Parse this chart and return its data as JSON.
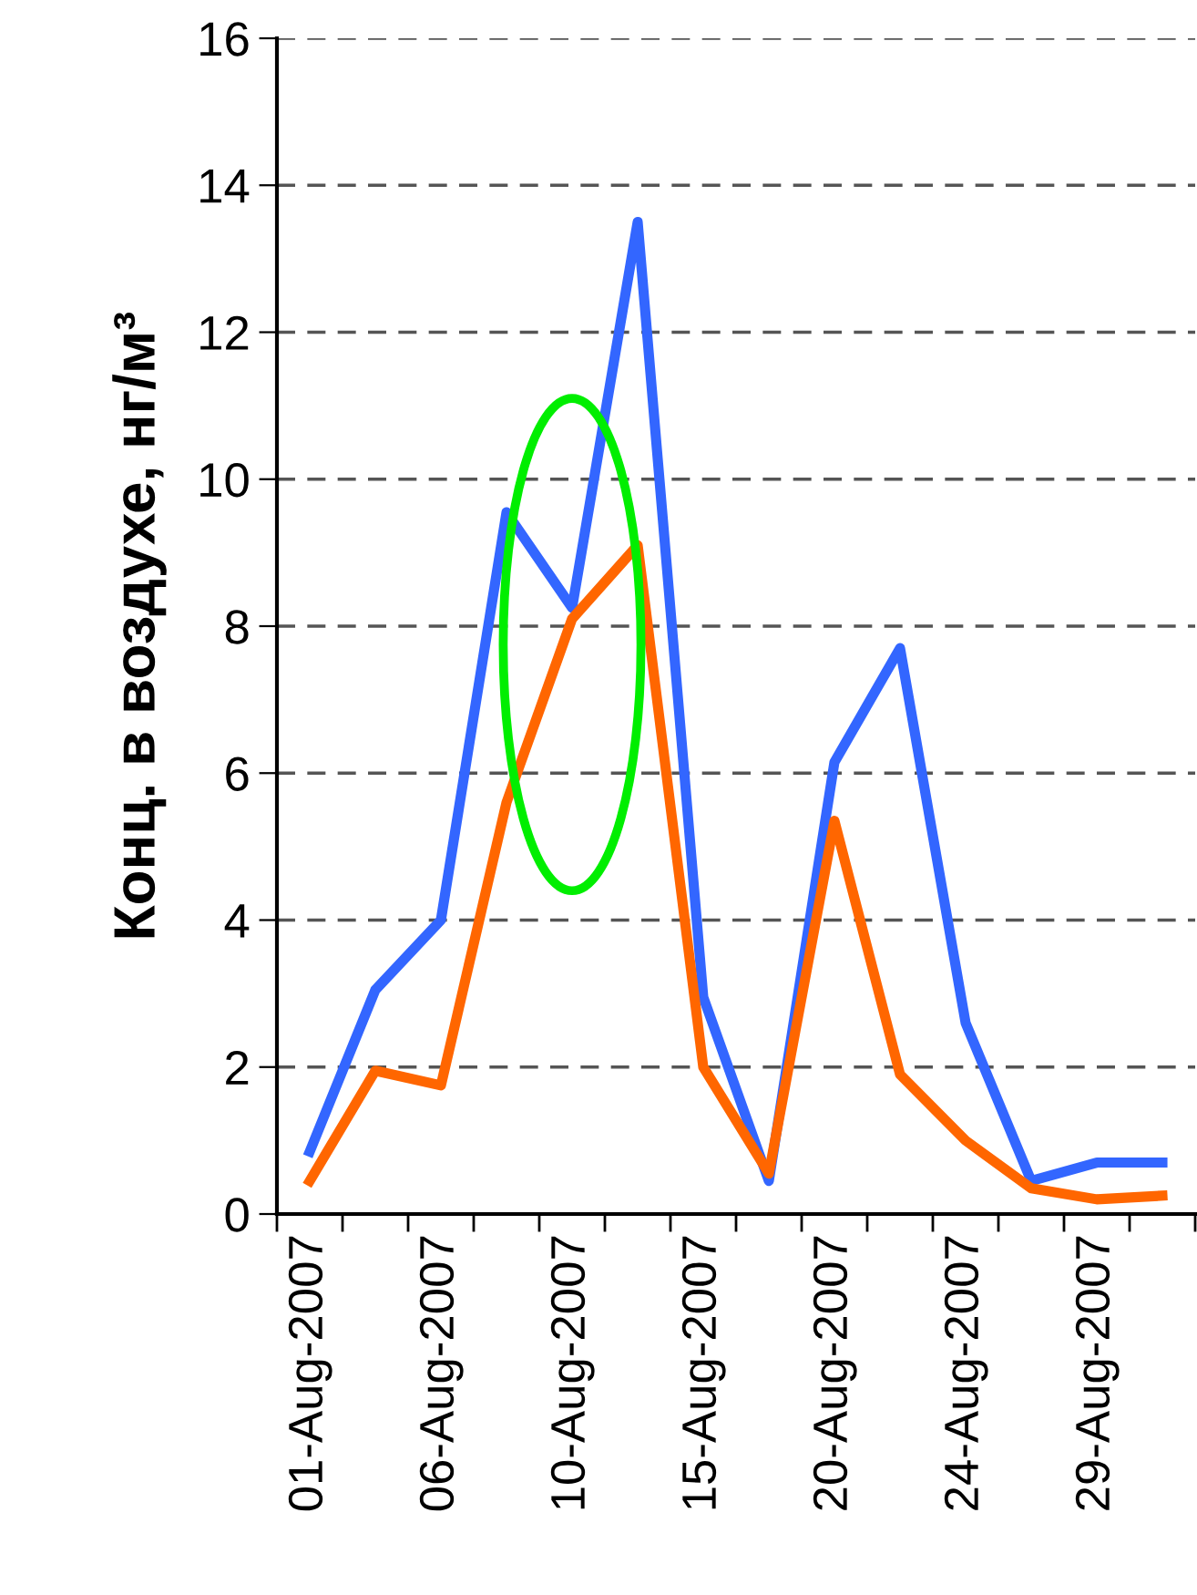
{
  "chart_data": {
    "type": "line",
    "ylabel": "Конц. в воздухе, нг/м³",
    "categories": [
      "01-Aug-2007",
      null,
      "06-Aug-2007",
      null,
      "10-Aug-2007",
      null,
      "15-Aug-2007",
      null,
      "20-Aug-2007",
      null,
      "24-Aug-2007",
      null,
      "29-Aug-2007",
      null
    ],
    "series": [
      {
        "color": "#3366ff",
        "values": [
          0.85,
          3.05,
          4.0,
          9.55,
          8.25,
          13.5,
          2.95,
          0.45,
          6.15,
          7.7,
          2.6,
          0.45,
          0.7,
          0.7
        ]
      },
      {
        "color": "#ff6600",
        "values": [
          0.45,
          1.95,
          1.75,
          5.6,
          8.1,
          9.1,
          2.0,
          0.55,
          5.35,
          1.9,
          1.0,
          0.35,
          0.2,
          0.25
        ]
      }
    ],
    "ylim": [
      0,
      16
    ],
    "yticks": [
      0,
      2,
      4,
      6,
      8,
      10,
      12,
      14,
      16
    ],
    "grid": "y",
    "marker": "none",
    "line_style": "solid"
  }
}
